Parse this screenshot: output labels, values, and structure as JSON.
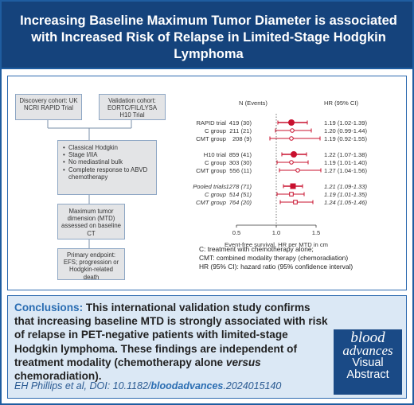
{
  "header": {
    "title": "Increasing Baseline Maximum Tumor Diameter is associated with Increased Risk of Relapse in Limited-Stage Hodgkin Lymphoma"
  },
  "flow": {
    "discovery": "Discovery cohort: UK NCRI RAPID Trial",
    "validation": "Validation cohort: EORTC/FIL/LYSA H10 Trial",
    "criteria": [
      "Classical Hodgkin",
      "Stage I/IIA",
      "No mediastinal bulk",
      "Complete response to ABVD chemotherapy"
    ],
    "mtd": "Maximum tumor dimension (MTD) assessed on baseline CT",
    "endpoint": "Primary endpoint: EFS; progression or Hodgkin-related death"
  },
  "forest": {
    "col_n": "N (Events)",
    "col_hr": "HR (95% CI)",
    "x_axis_title": "Event-free survival, HR per MTD in cm",
    "x_ticks": [
      "0.5",
      "1.0",
      "1.5"
    ],
    "rows": [
      {
        "label": "RAPID trial",
        "n": "419 (30)",
        "hr_text": "1.19 (1.02-1.39)",
        "hr": 1.19,
        "lo": 1.02,
        "hi": 1.39,
        "style": "main"
      },
      {
        "label": "C group",
        "n": "211 (21)",
        "hr_text": "1.20 (0.99-1.44)",
        "hr": 1.2,
        "lo": 0.99,
        "hi": 1.44,
        "style": "sub"
      },
      {
        "label": "CMT group",
        "n": "208 (9)",
        "hr_text": "1.19 (0.92-1.55)",
        "hr": 1.19,
        "lo": 0.92,
        "hi": 1.55,
        "style": "sub"
      },
      {
        "label": "H10 trial",
        "n": "859 (41)",
        "hr_text": "1.22 (1.07-1.38)",
        "hr": 1.22,
        "lo": 1.07,
        "hi": 1.38,
        "style": "main"
      },
      {
        "label": "C group",
        "n": "303 (30)",
        "hr_text": "1.19 (1.01-1.40)",
        "hr": 1.19,
        "lo": 1.01,
        "hi": 1.4,
        "style": "sub"
      },
      {
        "label": "CMT group",
        "n": "556 (11)",
        "hr_text": "1.27 (1.04-1.56)",
        "hr": 1.27,
        "lo": 1.04,
        "hi": 1.56,
        "style": "sub"
      },
      {
        "label": "Pooled trials",
        "n": "1278 (71)",
        "hr_text": "1.21 (1.09-1.33)",
        "hr": 1.21,
        "lo": 1.09,
        "hi": 1.33,
        "style": "pooled"
      },
      {
        "label": "C group",
        "n": "514 (51)",
        "hr_text": "1.19 (1.01-1.35)",
        "hr": 1.19,
        "lo": 1.01,
        "hi": 1.35,
        "style": "pooledsub"
      },
      {
        "label": "CMT group",
        "n": "764 (20)",
        "hr_text": "1.24 (1.05-1.46)",
        "hr": 1.24,
        "lo": 1.05,
        "hi": 1.46,
        "style": "pooledsub"
      }
    ]
  },
  "legend": {
    "c": "C: treatment with chemotherapy alone;",
    "cmt": "CMT: combined modality therapy (chemoradiation)",
    "hr": "HR (95% CI): hazard ratio (95% confidence interval)"
  },
  "conclusions": {
    "label": "Conclusions:",
    "text": "This international validation study confirms that increasing baseline MTD is strongly associated with risk of relapse in PET-negative patients with limited-stage Hodgkin lymphoma. These findings are independent of treatment modality (chemotherapy alone ",
    "versus": "versus",
    "text_end": " chemoradiation).",
    "cite_prefix": "EH Phillips et al, DOI: 10.1182/",
    "cite_journal": "bloodadvances",
    "cite_suffix": ".2024015140"
  },
  "logo": {
    "line1": "blood",
    "line2": "advances",
    "line3": "Visual",
    "line4": "Abstract"
  },
  "colors": {
    "header_bg": "#15437c",
    "accent": "#2a6db2",
    "forest_red": "#c8102e",
    "conclusion_bg": "#dbe8f5",
    "flow_box": "#e3e4e6"
  },
  "chart_data": {
    "type": "forest",
    "x_label": "Event-free survival, HR per MTD in cm",
    "x_range": [
      0.5,
      1.5
    ],
    "reference_line": 1.0,
    "categories": [
      "RAPID trial",
      "C group",
      "CMT group",
      "H10 trial",
      "C group",
      "CMT group",
      "Pooled trials",
      "C group",
      "CMT group"
    ],
    "hr": [
      1.19,
      1.2,
      1.19,
      1.22,
      1.19,
      1.27,
      1.21,
      1.19,
      1.24
    ],
    "ci_low": [
      1.02,
      0.99,
      0.92,
      1.07,
      1.01,
      1.04,
      1.09,
      1.01,
      1.05
    ],
    "ci_high": [
      1.39,
      1.44,
      1.55,
      1.38,
      1.4,
      1.56,
      1.33,
      1.35,
      1.46
    ]
  }
}
